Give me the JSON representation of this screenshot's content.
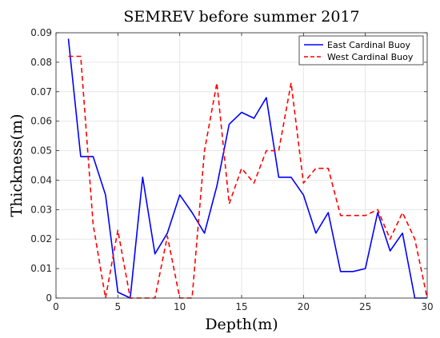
{
  "chart_data": {
    "type": "line",
    "title": "SEMREV before summer 2017",
    "xlabel": "Depth(m)",
    "ylabel": "Thickness(m)",
    "xlim": [
      0,
      30
    ],
    "ylim": [
      0,
      0.09
    ],
    "xticks": [
      0,
      5,
      10,
      15,
      20,
      25,
      30
    ],
    "yticks": [
      0,
      0.01,
      0.02,
      0.03,
      0.04,
      0.05,
      0.06,
      0.07,
      0.08,
      0.09
    ],
    "grid": true,
    "legend_position": "top-right",
    "series": [
      {
        "name": "East Cardinal Buoy",
        "color": "#0000ff",
        "style": "solid",
        "x": [
          1,
          2,
          3,
          4,
          5,
          6,
          7,
          8,
          9,
          10,
          11,
          12,
          13,
          14,
          15,
          16,
          17,
          18,
          19,
          20,
          21,
          22,
          23,
          24,
          25,
          26,
          27,
          28,
          29,
          30
        ],
        "y": [
          0.088,
          0.048,
          0.048,
          0.035,
          0.002,
          0.0,
          0.041,
          0.015,
          0.022,
          0.035,
          0.029,
          0.022,
          0.038,
          0.059,
          0.063,
          0.061,
          0.068,
          0.041,
          0.041,
          0.035,
          0.022,
          0.029,
          0.009,
          0.009,
          0.01,
          0.029,
          0.016,
          0.022,
          0.0,
          0.0
        ]
      },
      {
        "name": "West Cardinal Buoy",
        "color": "#ff0000",
        "style": "dashed",
        "x": [
          1,
          2,
          3,
          4,
          5,
          6,
          7,
          8,
          9,
          10,
          11,
          12,
          13,
          14,
          15,
          16,
          17,
          18,
          19,
          20,
          21,
          22,
          23,
          24,
          25,
          26,
          27,
          28,
          29,
          30
        ],
        "y": [
          0.082,
          0.082,
          0.025,
          0.0,
          0.023,
          0.0,
          0.0,
          0.0,
          0.021,
          0.0,
          0.0,
          0.05,
          0.073,
          0.032,
          0.044,
          0.039,
          0.05,
          0.05,
          0.073,
          0.039,
          0.044,
          0.044,
          0.028,
          0.028,
          0.028,
          0.03,
          0.02,
          0.029,
          0.02,
          0.0
        ]
      }
    ]
  }
}
